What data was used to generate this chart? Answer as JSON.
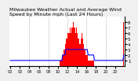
{
  "title": "Milwaukee Weather Actual and Average Wind Speed by Minute mph (Last 24 Hours)",
  "background_color": "#f0f0f0",
  "plot_bg_color": "#ffffff",
  "bar_color": "#ff0000",
  "line_color": "#0000ff",
  "ylabel_right": true,
  "ylim": [
    0,
    9
  ],
  "yticks": [
    1,
    2,
    3,
    4,
    5,
    6,
    7,
    8
  ],
  "num_points": 144,
  "bar_values": [
    0,
    0,
    0,
    0,
    0,
    0,
    0,
    0,
    0,
    0,
    0,
    0,
    0,
    0,
    0,
    0,
    0,
    0,
    0,
    0,
    0,
    0,
    0,
    0,
    0,
    0,
    0,
    0,
    0,
    0,
    0,
    0,
    0,
    0,
    0,
    0,
    0,
    0,
    0,
    0,
    0,
    0,
    0,
    0,
    0,
    0,
    0,
    0,
    0,
    0,
    0,
    0,
    0,
    0,
    0,
    0,
    0,
    0,
    0,
    0,
    0,
    0,
    0,
    1,
    1,
    1,
    2,
    2,
    3,
    3,
    4,
    5,
    5,
    6,
    6,
    7,
    6,
    7,
    7,
    8,
    7,
    7,
    6,
    7,
    6,
    5,
    5,
    4,
    4,
    5,
    6,
    5,
    4,
    3,
    3,
    2,
    2,
    2,
    1,
    1,
    1,
    1,
    1,
    1,
    1,
    1,
    0,
    0,
    0,
    0,
    0,
    0,
    0,
    0,
    0,
    0,
    0,
    0,
    0,
    0,
    0,
    0,
    0,
    0,
    0,
    0,
    0,
    0,
    0,
    0,
    0,
    0,
    0,
    0,
    0,
    0,
    0,
    0,
    0,
    0,
    0,
    0,
    0,
    8
  ],
  "avg_values": [
    1,
    1,
    1,
    1,
    1,
    1,
    1,
    1,
    1,
    1,
    1,
    1,
    1,
    1,
    1,
    1,
    1,
    1,
    1,
    1,
    1,
    1,
    1,
    1,
    1,
    1,
    1,
    1,
    1,
    1,
    1,
    1,
    1,
    1,
    1,
    1,
    1,
    1,
    1,
    1,
    1,
    1,
    1,
    1,
    1,
    1,
    1,
    1,
    1,
    1,
    1,
    1,
    1,
    1,
    1,
    1,
    1,
    1,
    1,
    1,
    1,
    1,
    1,
    1,
    1,
    1,
    2,
    2,
    2,
    2,
    3,
    3,
    3,
    3,
    3,
    3,
    3,
    3,
    3,
    3,
    3,
    3,
    3,
    3,
    3,
    3,
    3,
    3,
    3,
    3,
    3,
    3,
    3,
    3,
    3,
    3,
    3,
    3,
    2,
    2,
    2,
    2,
    2,
    2,
    2,
    2,
    1,
    1,
    1,
    1,
    1,
    1,
    1,
    1,
    1,
    1,
    1,
    1,
    1,
    1,
    1,
    1,
    1,
    1,
    1,
    1,
    1,
    1,
    1,
    1,
    1,
    1,
    1,
    1,
    1,
    1,
    1,
    1,
    1,
    1,
    1,
    1,
    1,
    2
  ],
  "vline_positions": [
    24,
    48,
    72,
    96,
    120
  ],
  "vline_color": "#aaaaaa",
  "tick_fontsize": 4,
  "title_fontsize": 4.5
}
